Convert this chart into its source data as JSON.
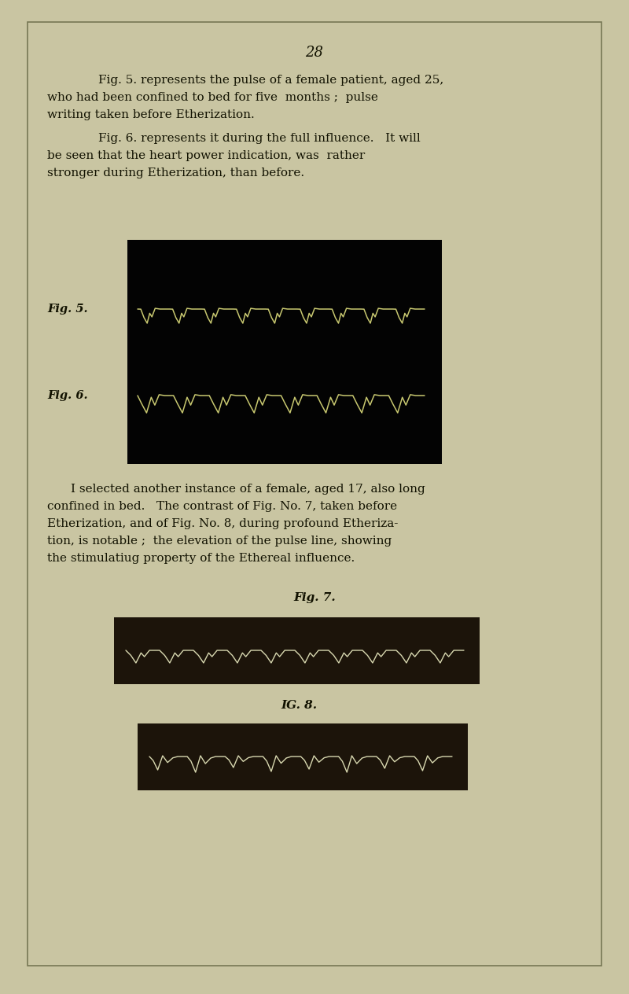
{
  "page_number": "28",
  "bg_color": "#c9c5a2",
  "border_color": "#777755",
  "text_color": "#111100",
  "fig_label_5": "Fig. 5.",
  "fig_label_6": "Fig. 6.",
  "fig7_caption": "Fig. 7.",
  "fig8_caption": "IG. 8.",
  "big_box_bg": "#030303",
  "fig7_box_bg": "#1c140a",
  "fig8_box_bg": "#1c140a",
  "pulse_color_5": "#c8c870",
  "pulse_color_6": "#c8c870",
  "pulse_color_7": "#d8d8b0",
  "pulse_color_8": "#d8d8b0",
  "para1_lines": [
    "Fig. 5. represents the pulse of a female patient, aged 25,",
    "who had been confined to bed for five  months ;  pulse",
    "writing taken before Etherization."
  ],
  "para2_lines": [
    "Fig. 6. represents it during the full influence.   It will",
    "be seen that the heart power indication, was  rather",
    "stronger during Etherization, than before."
  ],
  "para3_lines": [
    "I selected another instance of a female, aged 17, also long",
    "confined in bed.   The contrast of Fig. No. 7, taken before",
    "Etherization, and of Fig. No. 8, during profound Etheriza-",
    "tion, is notable ;  the elevation of the pulse line, showing",
    "the stimulatiug property of the Ethereal influence."
  ]
}
